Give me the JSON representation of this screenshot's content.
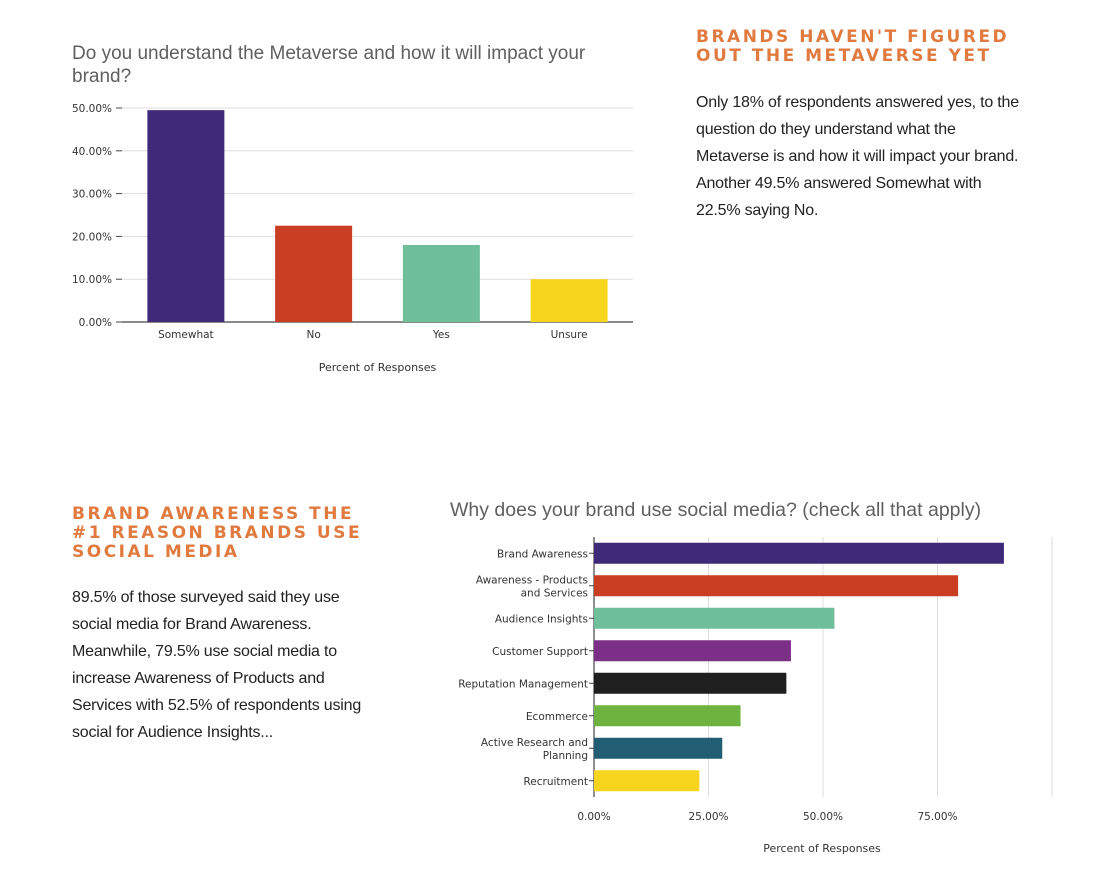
{
  "section1": {
    "heading": "BRANDS HAVEN'T FIGURED OUT THE METAVERSE YET",
    "body": "Only 18% of respondents answered yes, to the question do they understand what the Metaverse is and how it will impact your brand. Another 49.5% answered Somewhat with 22.5% saying No."
  },
  "section2": {
    "heading": "BRAND AWARENESS THE #1 REASON BRANDS USE SOCIAL MEDIA",
    "body": "89.5% of those surveyed said they use social media for Brand Awareness. Meanwhile, 79.5% use social media to increase Awareness of Products and Services with 52.5% of respondents using social for Audience Insights..."
  },
  "chart_data": [
    {
      "type": "bar",
      "orientation": "vertical",
      "title": "Do you understand the Metaverse and how it will impact your brand?",
      "xlabel": "Percent of Responses",
      "ylabel": "",
      "categories": [
        "Somewhat",
        "No",
        "Yes",
        "Unsure"
      ],
      "values": [
        49.5,
        22.5,
        18,
        10
      ],
      "colors": [
        "#3f2a7a",
        "#c93d22",
        "#6fbf9b",
        "#f7d51e"
      ],
      "ylim": [
        0,
        50
      ],
      "yticks": [
        "0.00%",
        "10.00%",
        "20.00%",
        "30.00%",
        "40.00%",
        "50.00%"
      ],
      "grid": true
    },
    {
      "type": "bar",
      "orientation": "horizontal",
      "title": "Why does your brand use social media? (check all that apply)",
      "xlabel": "Percent of Responses",
      "ylabel": "",
      "categories": [
        "Brand Awareness",
        "Awareness - Products and Services",
        "Audience Insights",
        "Customer Support",
        "Reputation Management",
        "Ecommerce",
        "Active Research and Planning",
        "Recruitment"
      ],
      "category_lines": [
        [
          "Brand Awareness"
        ],
        [
          "Awareness - Products",
          "and Services"
        ],
        [
          "Audience Insights"
        ],
        [
          "Customer Support"
        ],
        [
          "Reputation Management"
        ],
        [
          "Ecommerce"
        ],
        [
          "Active Research and",
          "Planning"
        ],
        [
          "Recruitment"
        ]
      ],
      "values": [
        89.5,
        79.5,
        52.5,
        43,
        42,
        32,
        28,
        23
      ],
      "colors": [
        "#3f2a7a",
        "#c93d22",
        "#6fbf9b",
        "#7b2f86",
        "#1f1f1f",
        "#6cb33f",
        "#225e73",
        "#f7d51e"
      ],
      "xlim": [
        0,
        100
      ],
      "xticks": [
        "0.00%",
        "25.00%",
        "50.00%",
        "75.00%"
      ],
      "grid": true
    }
  ]
}
